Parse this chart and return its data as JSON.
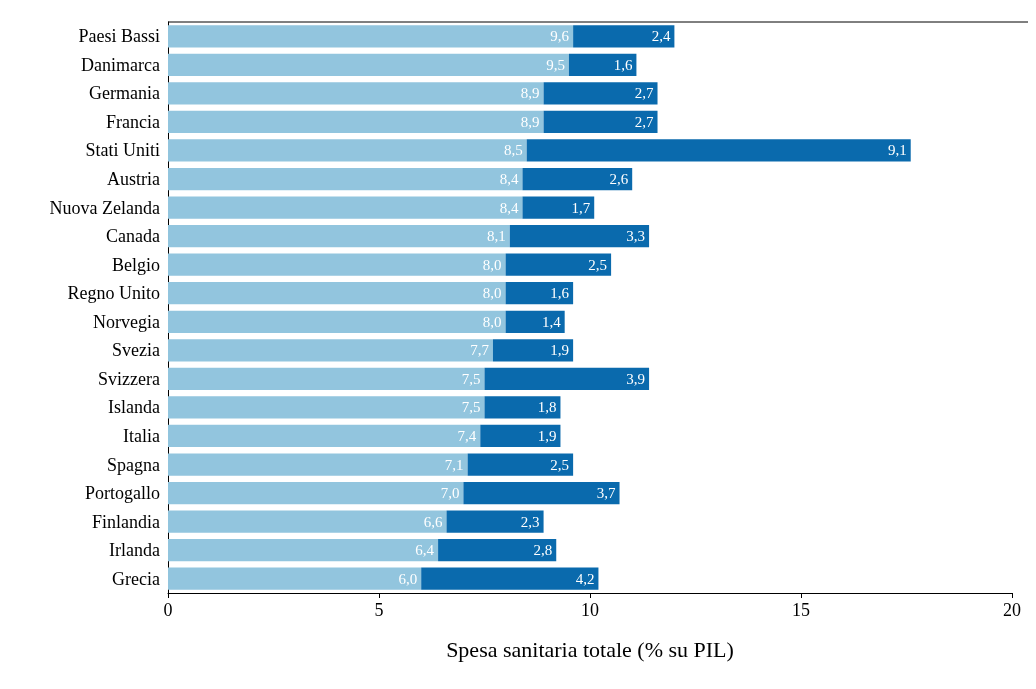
{
  "chart_data": {
    "type": "bar",
    "orientation": "horizontal",
    "stacked": true,
    "xlabel": "Spesa sanitaria totale (% su PIL)",
    "categories": [
      "Paesi Bassi",
      "Danimarca",
      "Germania",
      "Francia",
      "Stati Uniti",
      "Austria",
      "Nuova Zelanda",
      "Canada",
      "Belgio",
      "Regno Unito",
      "Norvegia",
      "Svezia",
      "Svizzera",
      "Islanda",
      "Italia",
      "Spagna",
      "Portogallo",
      "Finlandia",
      "Irlanda",
      "Grecia"
    ],
    "series": [
      {
        "color": "#92c5de",
        "values": [
          9.6,
          9.5,
          8.9,
          8.9,
          8.5,
          8.4,
          8.4,
          8.1,
          8.0,
          8.0,
          8.0,
          7.7,
          7.5,
          7.5,
          7.4,
          7.1,
          7.0,
          6.6,
          6.4,
          6.0
        ],
        "value_labels": [
          "9,6",
          "9,5",
          "8,9",
          "8,9",
          "8,5",
          "8,4",
          "8,4",
          "8,1",
          "8,0",
          "8,0",
          "8,0",
          "7,7",
          "7,5",
          "7,5",
          "7,4",
          "7,1",
          "7,0",
          "6,6",
          "6,4",
          "6,0"
        ]
      },
      {
        "color": "#0a6aad",
        "values": [
          2.4,
          1.6,
          2.7,
          2.7,
          9.1,
          2.6,
          1.7,
          3.3,
          2.5,
          1.6,
          1.4,
          1.9,
          3.9,
          1.8,
          1.9,
          2.5,
          3.7,
          2.3,
          2.8,
          4.2
        ],
        "value_labels": [
          "2,4",
          "1,6",
          "2,7",
          "2,7",
          "9,1",
          "2,6",
          "1,7",
          "3,3",
          "2,5",
          "1,6",
          "1,4",
          "1,9",
          "3,9",
          "1,8",
          "1,9",
          "2,5",
          "3,7",
          "2,3",
          "2,8",
          "4,2"
        ]
      }
    ],
    "xlim": [
      0,
      20
    ],
    "xticks": [
      0,
      5,
      10,
      15,
      20
    ],
    "grid": false
  }
}
